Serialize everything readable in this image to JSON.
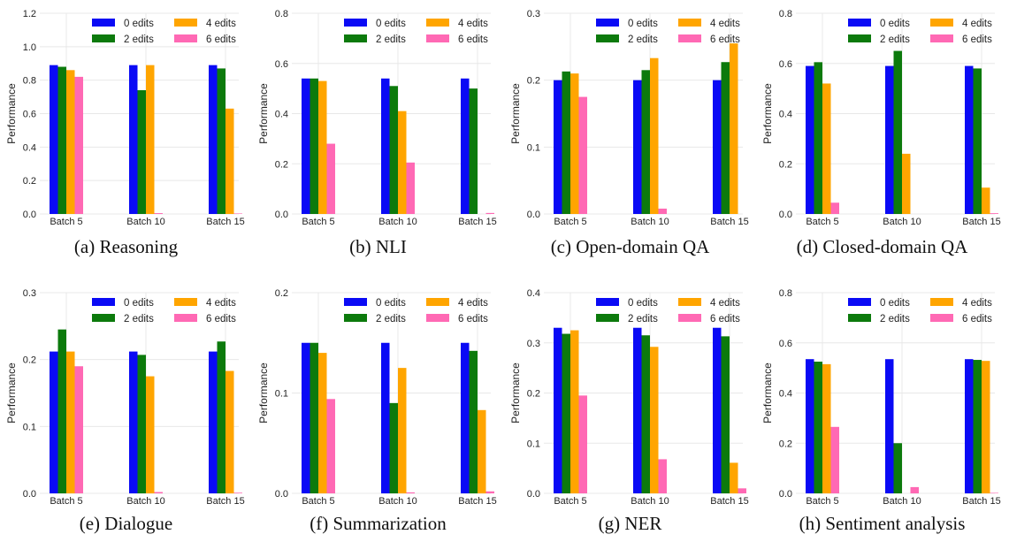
{
  "series_colors": [
    "#0a0af5",
    "#0c7a0c",
    "#ffa500",
    "#ff69b4"
  ],
  "chart_data": [
    {
      "type": "bar",
      "caption": "(a) Reasoning",
      "ylabel": "Performance",
      "ylim": [
        0,
        1.2
      ],
      "yticks": [
        "0.0",
        "0.2",
        "0.4",
        "0.6",
        "0.8",
        "1.0",
        "1.2"
      ],
      "ytick_values": [
        0,
        0.2,
        0.4,
        0.6,
        0.8,
        1.0,
        1.2
      ],
      "categories": [
        "Batch 5",
        "Batch 10",
        "Batch 15"
      ],
      "legend": "top-right",
      "grid": true,
      "series": [
        {
          "name": "0 edits",
          "values": [
            0.89,
            0.89,
            0.89
          ]
        },
        {
          "name": "2 edits",
          "values": [
            0.88,
            0.74,
            0.87
          ]
        },
        {
          "name": "4 edits",
          "values": [
            0.86,
            0.89,
            0.63
          ]
        },
        {
          "name": "6 edits",
          "values": [
            0.82,
            0.005,
            0.003
          ]
        }
      ]
    },
    {
      "type": "bar",
      "caption": "(b) NLI",
      "ylabel": "Performance",
      "ylim": [
        0,
        0.8
      ],
      "yticks": [
        "0.0",
        "0.2",
        "0.4",
        "0.6",
        "0.8"
      ],
      "ytick_values": [
        0,
        0.2,
        0.4,
        0.6,
        0.8
      ],
      "categories": [
        "Batch 5",
        "Batch 10",
        "Batch 15"
      ],
      "legend": "top-right",
      "grid": true,
      "series": [
        {
          "name": "0 edits",
          "values": [
            0.54,
            0.54,
            0.54
          ]
        },
        {
          "name": "2 edits",
          "values": [
            0.54,
            0.51,
            0.5
          ]
        },
        {
          "name": "4 edits",
          "values": [
            0.53,
            0.41,
            0.0
          ]
        },
        {
          "name": "6 edits",
          "values": [
            0.28,
            0.205,
            0.004
          ]
        }
      ]
    },
    {
      "type": "bar",
      "caption": "(c) Open-domain QA",
      "ylabel": "Performance",
      "ylim": [
        0,
        0.3
      ],
      "yticks": [
        "0.0",
        "0.1",
        "0.2",
        "0.3"
      ],
      "ytick_values": [
        0,
        0.1,
        0.2,
        0.3
      ],
      "categories": [
        "Batch 5",
        "Batch 10",
        "Batch 15"
      ],
      "legend": "top-right",
      "grid": true,
      "series": [
        {
          "name": "0 edits",
          "values": [
            0.2,
            0.2,
            0.2
          ]
        },
        {
          "name": "2 edits",
          "values": [
            0.213,
            0.215,
            0.227
          ]
        },
        {
          "name": "4 edits",
          "values": [
            0.21,
            0.233,
            0.255
          ]
        },
        {
          "name": "6 edits",
          "values": [
            0.175,
            0.008,
            0.0
          ]
        }
      ]
    },
    {
      "type": "bar",
      "caption": "(d) Closed-domain QA",
      "ylabel": "Performance",
      "ylim": [
        0,
        0.8
      ],
      "yticks": [
        "0.0",
        "0.2",
        "0.4",
        "0.6",
        "0.8"
      ],
      "ytick_values": [
        0,
        0.2,
        0.4,
        0.6,
        0.8
      ],
      "categories": [
        "Batch 5",
        "Batch 10",
        "Batch 15"
      ],
      "legend": "top-right",
      "grid": true,
      "series": [
        {
          "name": "0 edits",
          "values": [
            0.59,
            0.59,
            0.59
          ]
        },
        {
          "name": "2 edits",
          "values": [
            0.605,
            0.65,
            0.58
          ]
        },
        {
          "name": "4 edits",
          "values": [
            0.52,
            0.24,
            0.105
          ]
        },
        {
          "name": "6 edits",
          "values": [
            0.045,
            0.0,
            0.003
          ]
        }
      ]
    },
    {
      "type": "bar",
      "caption": "(e) Dialogue",
      "ylabel": "Performance",
      "ylim": [
        0,
        0.3
      ],
      "yticks": [
        "0.0",
        "0.1",
        "0.2",
        "0.3"
      ],
      "ytick_values": [
        0,
        0.1,
        0.2,
        0.3
      ],
      "categories": [
        "Batch 5",
        "Batch 10",
        "Batch 15"
      ],
      "legend": "top-right",
      "grid": true,
      "series": [
        {
          "name": "0 edits",
          "values": [
            0.212,
            0.212,
            0.212
          ]
        },
        {
          "name": "2 edits",
          "values": [
            0.245,
            0.207,
            0.227
          ]
        },
        {
          "name": "4 edits",
          "values": [
            0.212,
            0.175,
            0.183
          ]
        },
        {
          "name": "6 edits",
          "values": [
            0.19,
            0.002,
            0.001
          ]
        }
      ]
    },
    {
      "type": "bar",
      "caption": "(f) Summarization",
      "ylabel": "Performance",
      "ylim": [
        0,
        0.2
      ],
      "yticks": [
        "0.0",
        "0.1",
        "0.2"
      ],
      "ytick_values": [
        0,
        0.1,
        0.2
      ],
      "categories": [
        "Batch 5",
        "Batch 10",
        "Batch 15"
      ],
      "legend": "top-right",
      "grid": true,
      "series": [
        {
          "name": "0 edits",
          "values": [
            0.15,
            0.15,
            0.15
          ]
        },
        {
          "name": "2 edits",
          "values": [
            0.15,
            0.09,
            0.142
          ]
        },
        {
          "name": "4 edits",
          "values": [
            0.14,
            0.125,
            0.083
          ]
        },
        {
          "name": "6 edits",
          "values": [
            0.094,
            0.001,
            0.002
          ]
        }
      ]
    },
    {
      "type": "bar",
      "caption": "(g) NER",
      "ylabel": "Performance",
      "ylim": [
        0,
        0.4
      ],
      "yticks": [
        "0.0",
        "0.1",
        "0.2",
        "0.3",
        "0.4"
      ],
      "ytick_values": [
        0,
        0.1,
        0.2,
        0.3,
        0.4
      ],
      "categories": [
        "Batch 5",
        "Batch 10",
        "Batch 15"
      ],
      "legend": "top-right",
      "grid": true,
      "series": [
        {
          "name": "0 edits",
          "values": [
            0.33,
            0.33,
            0.33
          ]
        },
        {
          "name": "2 edits",
          "values": [
            0.318,
            0.315,
            0.313
          ]
        },
        {
          "name": "4 edits",
          "values": [
            0.325,
            0.292,
            0.061
          ]
        },
        {
          "name": "6 edits",
          "values": [
            0.195,
            0.068,
            0.01
          ]
        }
      ]
    },
    {
      "type": "bar",
      "caption": "(h) Sentiment analysis",
      "ylabel": "Performance",
      "ylim": [
        0,
        0.8
      ],
      "yticks": [
        "0.0",
        "0.2",
        "0.4",
        "0.6",
        "0.8"
      ],
      "ytick_values": [
        0,
        0.2,
        0.4,
        0.6,
        0.8
      ],
      "categories": [
        "Batch 5",
        "Batch 10",
        "Batch 15"
      ],
      "legend": "top-right",
      "grid": true,
      "series": [
        {
          "name": "0 edits",
          "values": [
            0.535,
            0.535,
            0.535
          ]
        },
        {
          "name": "2 edits",
          "values": [
            0.525,
            0.2,
            0.532
          ]
        },
        {
          "name": "4 edits",
          "values": [
            0.515,
            0.0,
            0.528
          ]
        },
        {
          "name": "6 edits",
          "values": [
            0.265,
            0.025,
            0.002
          ]
        }
      ]
    }
  ]
}
